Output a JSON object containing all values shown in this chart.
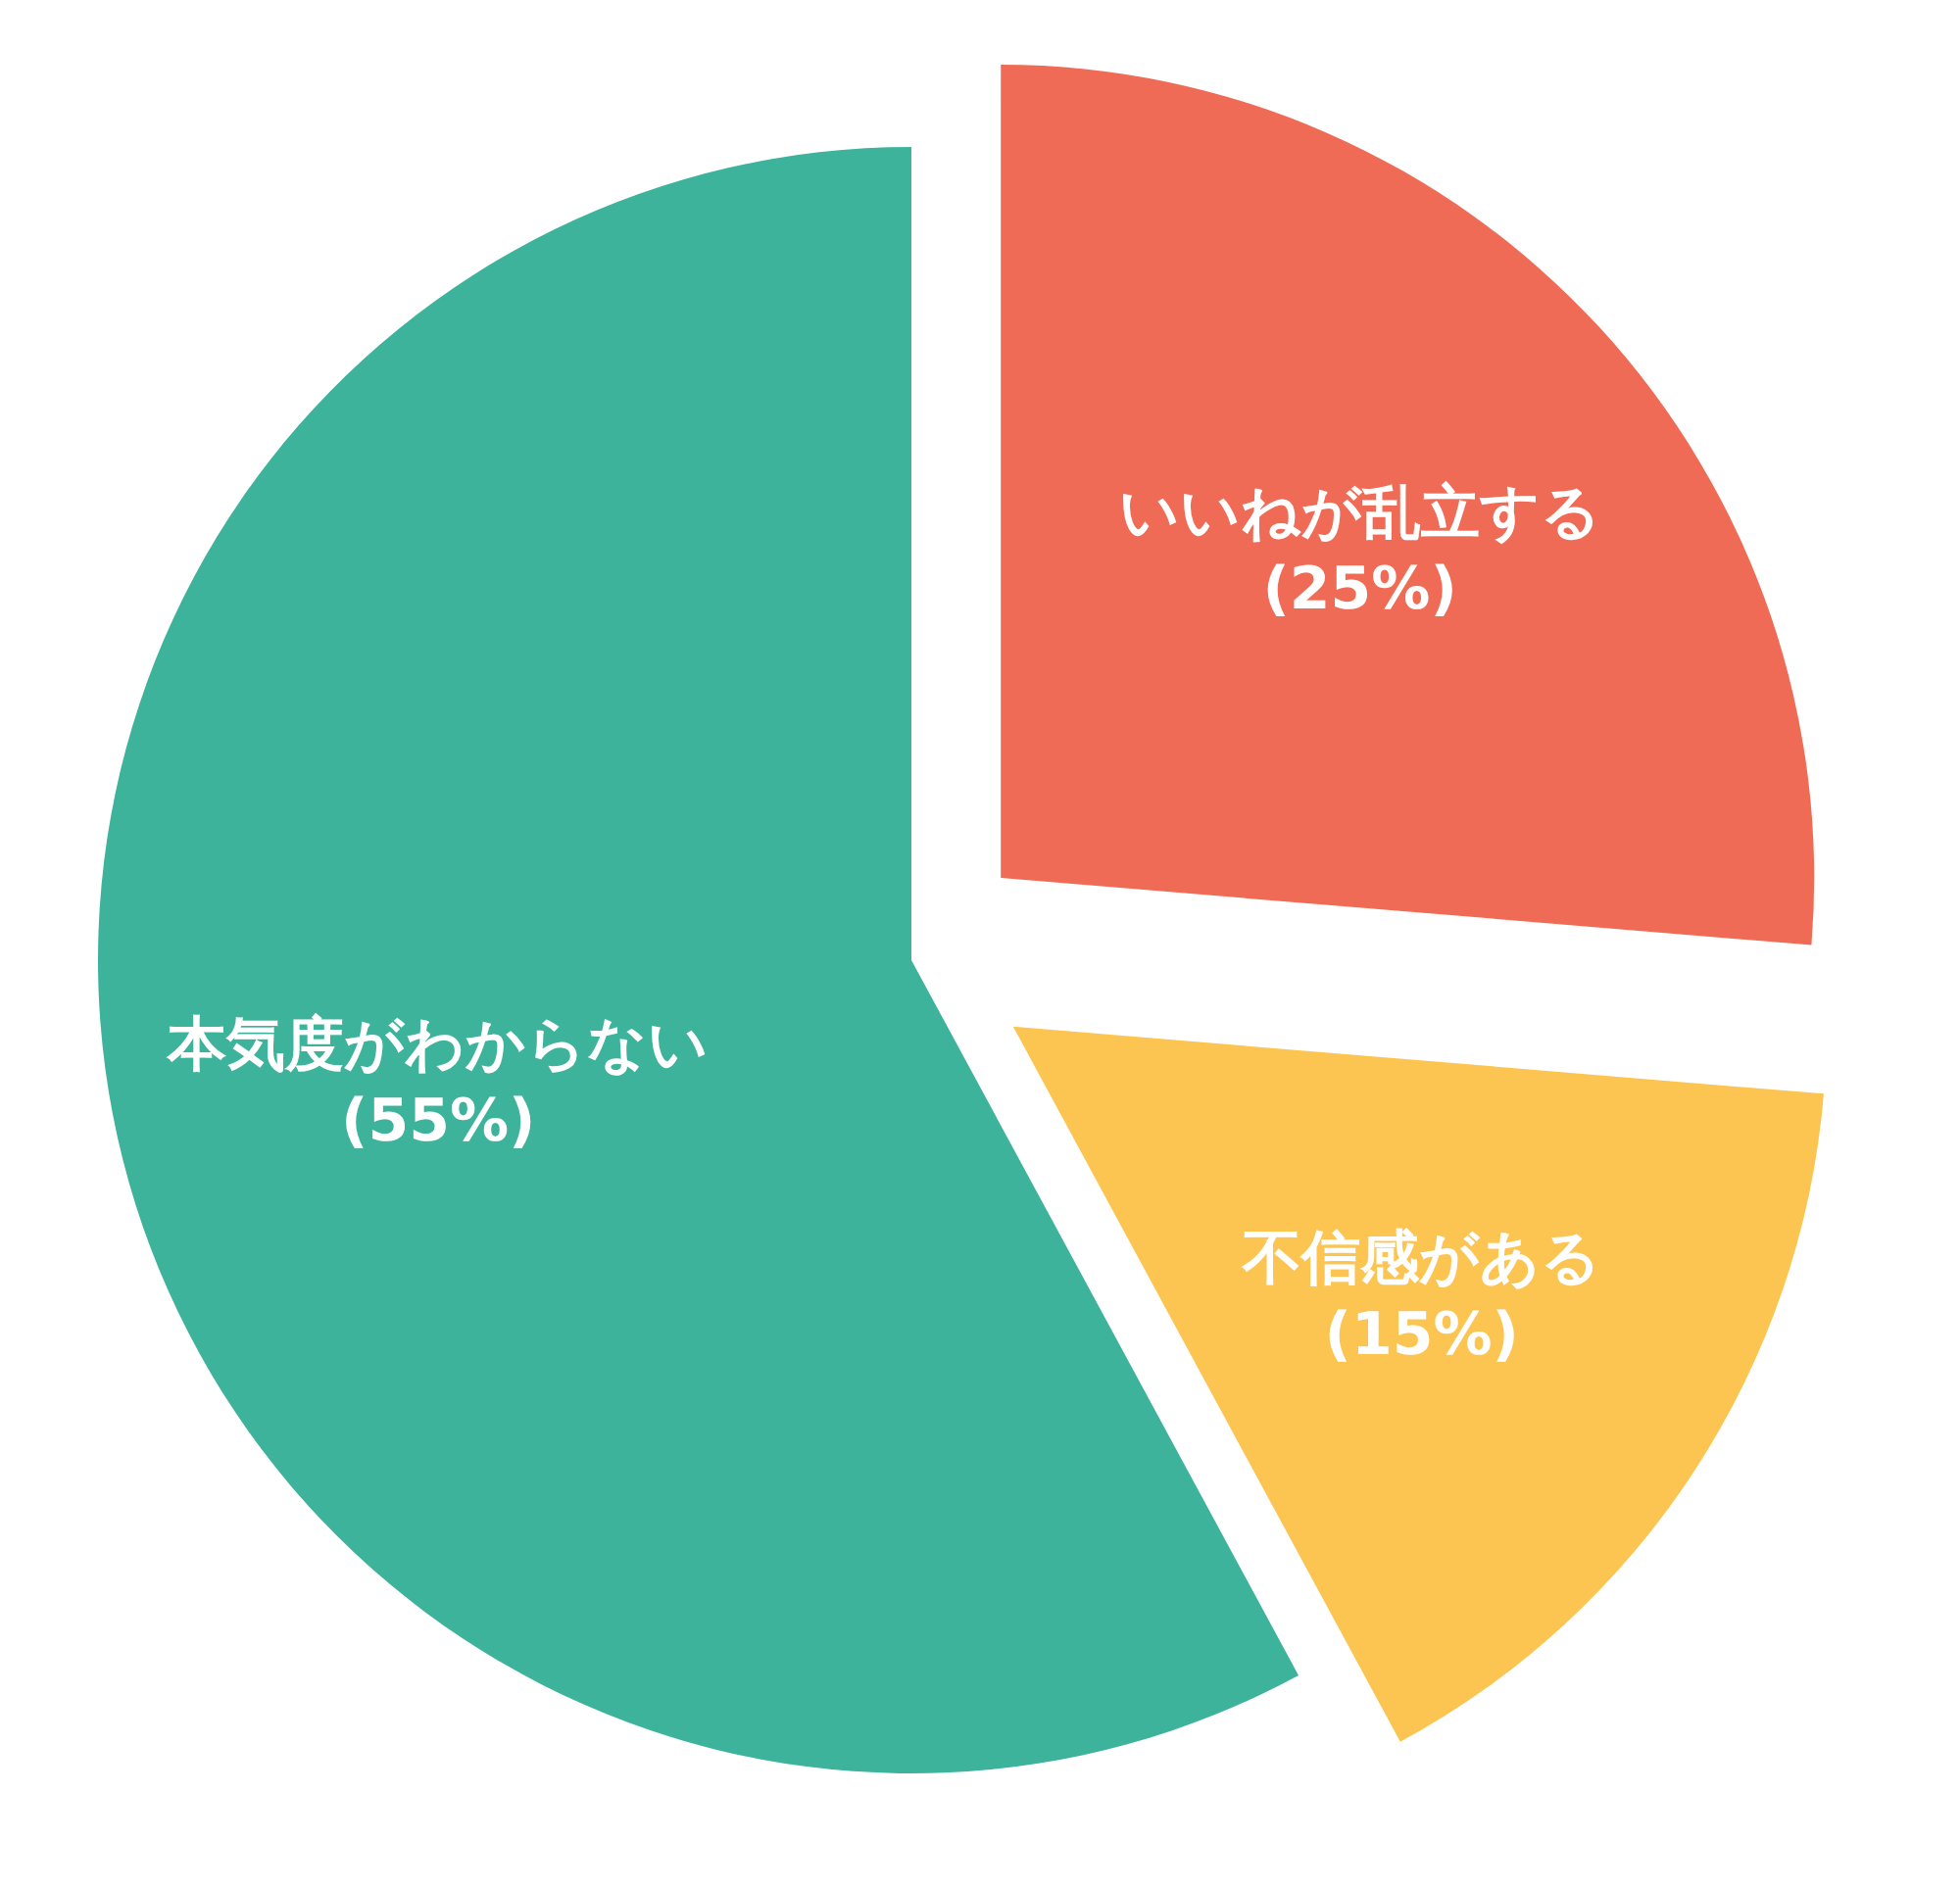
{
  "chart_data": {
    "type": "pie",
    "categories": [
      "いいねが乱立する",
      "不信感がある",
      "本気度がわからない"
    ],
    "values": [
      25,
      15,
      55
    ],
    "colors": [
      "#f06b55",
      "#fcc552",
      "#3db39b"
    ],
    "value_labels": [
      "(25%)",
      "(15%)",
      "(55%)"
    ]
  }
}
